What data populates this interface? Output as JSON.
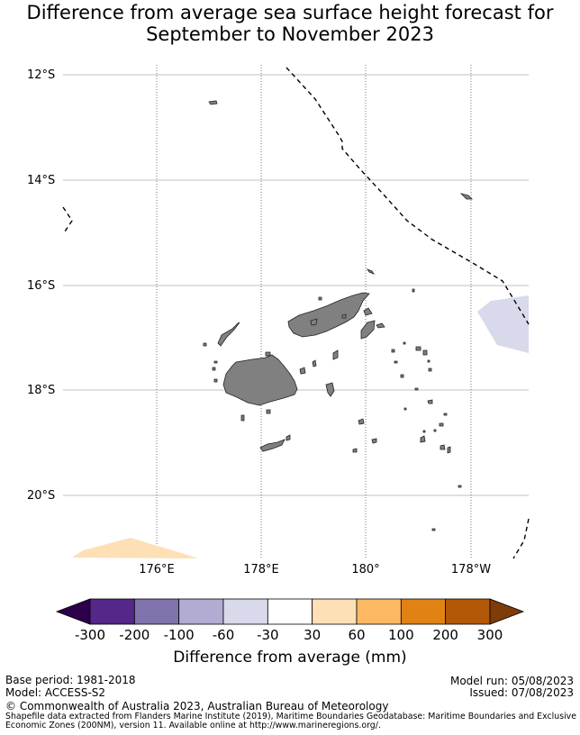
{
  "title_line1": "Difference from average sea surface height forecast for",
  "title_line2": "September to November 2023",
  "latitude_labels": [
    "12°S",
    "14°S",
    "16°S",
    "18°S",
    "20°S"
  ],
  "longitude_labels": [
    "176°E",
    "178°E",
    "180°",
    "178°W"
  ],
  "colorbar": {
    "ticks": [
      "-300",
      "-200",
      "-100",
      "-60",
      "-30",
      "30",
      "60",
      "100",
      "200",
      "300"
    ],
    "colors": [
      "#2d004b",
      "#542788",
      "#8073ac",
      "#b2abd2",
      "#d8daeb",
      "#ffffff",
      "#fee0b6",
      "#fdb863",
      "#e08214",
      "#b35806",
      "#7f3b08"
    ],
    "label": "Difference from average (mm)"
  },
  "footer": {
    "base_period": "Base period: 1981-2018",
    "model": "Model: ACCESS-S2",
    "model_run": "Model run: 05/08/2023",
    "issued": "Issued: 07/08/2023",
    "copyright": "© Commonwealth of Australia 2023, Australian Bureau of Meteorology",
    "credit_line1": "Shapefile data extracted from Flanders Marine Institute (2019), Maritime Boundaries Geodatabase: Maritime Boundaries and Exclusive",
    "credit_line2": "Economic Zones (200NM), version 11. Available online at http://www.marineregions.org/."
  },
  "map_colors": {
    "land": "#808080",
    "negative_anomaly": "#d8daeb",
    "positive_anomaly": "#fee0b6",
    "gridline": "#c0c0c0"
  }
}
